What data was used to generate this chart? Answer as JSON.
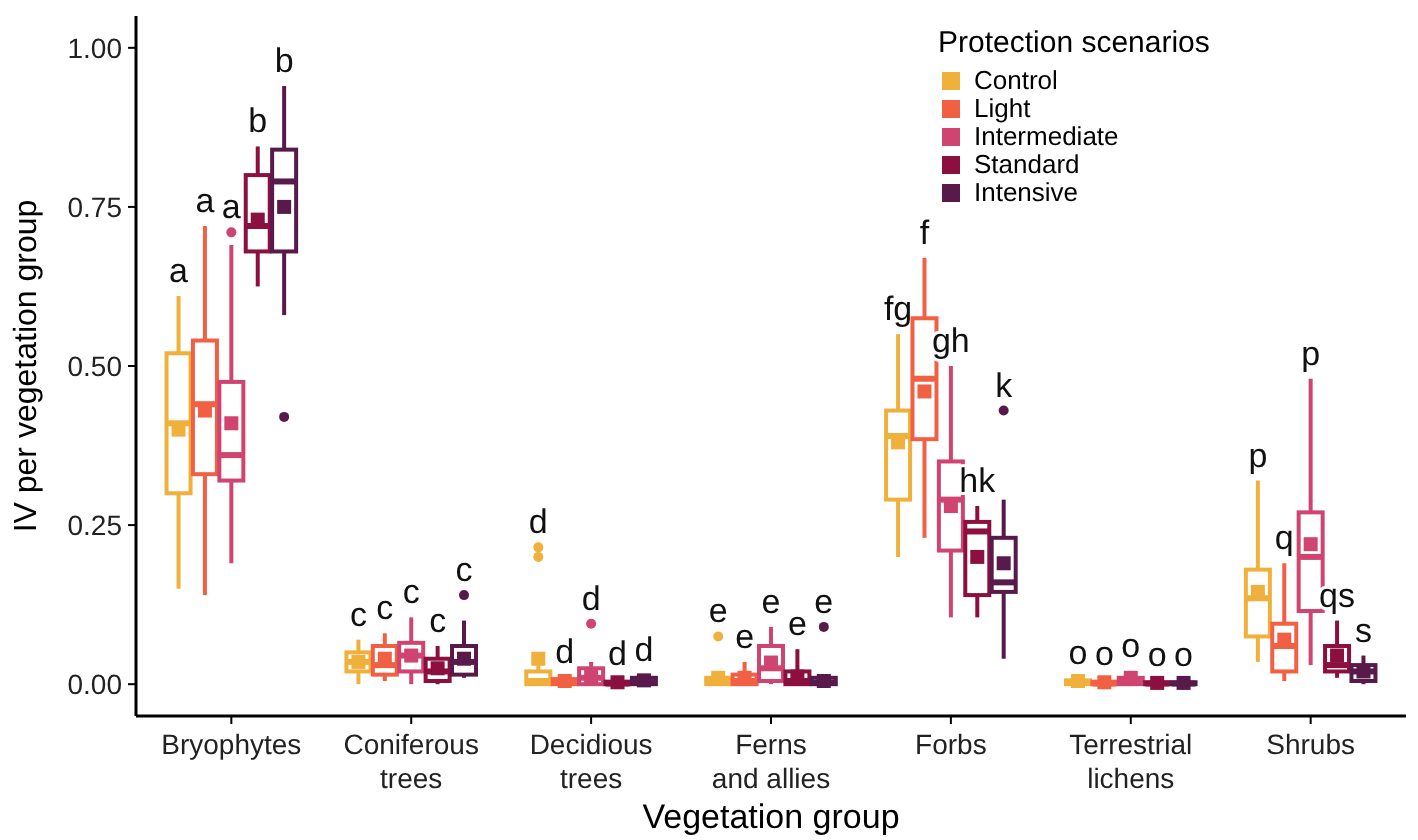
{
  "chart_data": {
    "type": "box",
    "xlabel": "Vegetation group",
    "ylabel": "IV per vegetation group",
    "legend_title": "Protection scenarios",
    "legend": "top right",
    "grid": false,
    "categories": [
      "Bryophytes",
      "Coniferous trees",
      "Decidious trees",
      "Ferns and allies",
      "Forbs",
      "Terrestrial lichens",
      "Shrubs"
    ],
    "ylim": [
      -0.05,
      1.05
    ],
    "yticks": [
      {
        "value": 0,
        "label": "0.00"
      },
      {
        "value": 0.25,
        "label": "0.25"
      },
      {
        "value": 0.5,
        "label": "0.50"
      },
      {
        "value": 0.75,
        "label": "0.75"
      },
      {
        "value": 1,
        "label": "1.00"
      }
    ],
    "series": [
      {
        "name": "Control",
        "color": "#f0b03c",
        "value_labels": [
          "a",
          "c",
          "d",
          "e",
          "fg",
          "o",
          "p"
        ],
        "boxes": [
          {
            "low": 0.15,
            "q1": 0.3,
            "median": 0.41,
            "q3": 0.52,
            "high": 0.61,
            "mean": 0.4
          },
          {
            "low": 0.0,
            "q1": 0.02,
            "median": 0.035,
            "q3": 0.05,
            "high": 0.07,
            "mean": 0.035
          },
          {
            "low": 0.0,
            "q1": 0.0,
            "median": 0.005,
            "q3": 0.02,
            "high": 0.035,
            "mean": 0.04,
            "outliers": [
              0.2,
              0.215
            ]
          },
          {
            "low": 0.0,
            "q1": 0.0,
            "median": 0.003,
            "q3": 0.01,
            "high": 0.02,
            "mean": 0.01,
            "outliers": [
              0.075
            ]
          },
          {
            "low": 0.2,
            "q1": 0.29,
            "median": 0.39,
            "q3": 0.43,
            "high": 0.55,
            "mean": 0.38
          },
          {
            "low": 0.0,
            "q1": 0.0,
            "median": 0.002,
            "q3": 0.006,
            "high": 0.01,
            "mean": 0.005
          },
          {
            "low": 0.035,
            "q1": 0.075,
            "median": 0.135,
            "q3": 0.18,
            "high": 0.32,
            "mean": 0.145
          }
        ]
      },
      {
        "name": "Light",
        "color": "#f26044",
        "value_labels": [
          "a",
          "c",
          "d",
          "e",
          "f",
          "o",
          "q"
        ],
        "boxes": [
          {
            "low": 0.14,
            "q1": 0.33,
            "median": 0.44,
            "q3": 0.54,
            "high": 0.72,
            "mean": 0.43
          },
          {
            "low": 0.005,
            "q1": 0.015,
            "median": 0.03,
            "q3": 0.06,
            "high": 0.08,
            "mean": 0.04
          },
          {
            "low": 0.0,
            "q1": 0.0,
            "median": 0.002,
            "q3": 0.008,
            "high": 0.012,
            "mean": 0.005
          },
          {
            "low": 0.0,
            "q1": 0.0,
            "median": 0.005,
            "q3": 0.015,
            "high": 0.035,
            "mean": 0.01
          },
          {
            "low": 0.23,
            "q1": 0.385,
            "median": 0.48,
            "q3": 0.575,
            "high": 0.67,
            "mean": 0.46
          },
          {
            "low": 0.0,
            "q1": 0.0,
            "median": 0.001,
            "q3": 0.004,
            "high": 0.008,
            "mean": 0.003
          },
          {
            "low": 0.005,
            "q1": 0.02,
            "median": 0.06,
            "q3": 0.095,
            "high": 0.19,
            "mean": 0.07
          }
        ]
      },
      {
        "name": "Intermediate",
        "color": "#cf4470",
        "value_labels": [
          "a",
          "c",
          "d",
          "e",
          "gh",
          "o",
          "p"
        ],
        "boxes": [
          {
            "low": 0.19,
            "q1": 0.32,
            "median": 0.36,
            "q3": 0.475,
            "high": 0.69,
            "mean": 0.41,
            "outliers": [
              0.71
            ]
          },
          {
            "low": 0.0,
            "q1": 0.02,
            "median": 0.045,
            "q3": 0.065,
            "high": 0.105,
            "mean": 0.045
          },
          {
            "low": 0.0,
            "q1": 0.0,
            "median": 0.01,
            "q3": 0.025,
            "high": 0.035,
            "mean": 0.012,
            "outliers": [
              0.095
            ]
          },
          {
            "low": 0.0,
            "q1": 0.005,
            "median": 0.025,
            "q3": 0.06,
            "high": 0.09,
            "mean": 0.034
          },
          {
            "low": 0.105,
            "q1": 0.21,
            "median": 0.29,
            "q3": 0.35,
            "high": 0.5,
            "mean": 0.28
          },
          {
            "low": 0.0,
            "q1": 0.0,
            "median": 0.004,
            "q3": 0.01,
            "high": 0.02,
            "mean": 0.01
          },
          {
            "low": 0.03,
            "q1": 0.115,
            "median": 0.2,
            "q3": 0.27,
            "high": 0.48,
            "mean": 0.22
          }
        ]
      },
      {
        "name": "Standard",
        "color": "#8b103f",
        "value_labels": [
          "b",
          "c",
          "d",
          "e",
          "hk",
          "o",
          "qs"
        ],
        "boxes": [
          {
            "low": 0.625,
            "q1": 0.68,
            "median": 0.72,
            "q3": 0.8,
            "high": 0.845,
            "mean": 0.73
          },
          {
            "low": 0.0,
            "q1": 0.005,
            "median": 0.02,
            "q3": 0.04,
            "high": 0.06,
            "mean": 0.025
          },
          {
            "low": 0.0,
            "q1": 0.0,
            "median": 0.001,
            "q3": 0.004,
            "high": 0.008,
            "mean": 0.003
          },
          {
            "low": 0.0,
            "q1": 0.0,
            "median": 0.005,
            "q3": 0.02,
            "high": 0.055,
            "mean": 0.012
          },
          {
            "low": 0.105,
            "q1": 0.14,
            "median": 0.24,
            "q3": 0.255,
            "high": 0.28,
            "mean": 0.2
          },
          {
            "low": 0.0,
            "q1": 0.0,
            "median": 0.001,
            "q3": 0.003,
            "high": 0.006,
            "mean": 0.002
          },
          {
            "low": 0.01,
            "q1": 0.02,
            "median": 0.03,
            "q3": 0.06,
            "high": 0.1,
            "mean": 0.045
          }
        ]
      },
      {
        "name": "Intensive",
        "color": "#581a4b",
        "value_labels": [
          "b",
          "c",
          "d",
          "e",
          "k",
          "o",
          "s"
        ],
        "boxes": [
          {
            "low": 0.58,
            "q1": 0.68,
            "median": 0.79,
            "q3": 0.84,
            "high": 0.94,
            "mean": 0.75,
            "outliers": [
              0.42
            ]
          },
          {
            "low": 0.01,
            "q1": 0.015,
            "median": 0.035,
            "q3": 0.06,
            "high": 0.1,
            "mean": 0.04,
            "outliers": [
              0.14
            ]
          },
          {
            "low": 0.0,
            "q1": 0.0,
            "median": 0.003,
            "q3": 0.01,
            "high": 0.015,
            "mean": 0.006
          },
          {
            "low": 0.0,
            "q1": 0.0,
            "median": 0.002,
            "q3": 0.01,
            "high": 0.015,
            "mean": 0.005,
            "outliers": [
              0.09
            ]
          },
          {
            "low": 0.04,
            "q1": 0.145,
            "median": 0.16,
            "q3": 0.23,
            "high": 0.29,
            "mean": 0.19,
            "outliers": [
              0.43
            ]
          },
          {
            "low": 0.0,
            "q1": 0.0,
            "median": 0.001,
            "q3": 0.003,
            "high": 0.006,
            "mean": 0.002
          },
          {
            "low": 0.0,
            "q1": 0.005,
            "median": 0.02,
            "q3": 0.03,
            "high": 0.045,
            "mean": 0.02
          }
        ]
      }
    ]
  }
}
